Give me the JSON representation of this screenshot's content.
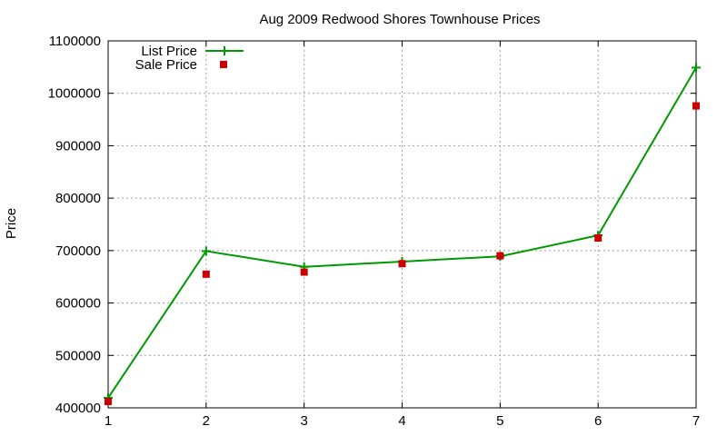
{
  "chart_data": {
    "type": "line",
    "title": "Aug 2009 Redwood Shores Townhouse Prices",
    "xlabel": "",
    "ylabel": "Price",
    "x": [
      1,
      2,
      3,
      4,
      5,
      6,
      7
    ],
    "xlim": [
      1,
      7
    ],
    "ylim": [
      400000,
      1100000
    ],
    "xticks": [
      "1",
      "2",
      "3",
      "4",
      "5",
      "6",
      "7"
    ],
    "yticks": [
      "400000",
      "500000",
      "600000",
      "700000",
      "800000",
      "900000",
      "1000000",
      "1100000"
    ],
    "grid": true,
    "legend_position": "top-left",
    "series": [
      {
        "name": "List Price",
        "style": "line-with-plus-markers",
        "color": "#009900",
        "values": [
          419000,
          699000,
          669000,
          679000,
          689000,
          729000,
          1049000
        ]
      },
      {
        "name": "Sale Price",
        "style": "square-markers",
        "color": "#cc0000",
        "values": [
          412000,
          655000,
          659000,
          675000,
          690000,
          724000,
          976000
        ]
      }
    ]
  }
}
